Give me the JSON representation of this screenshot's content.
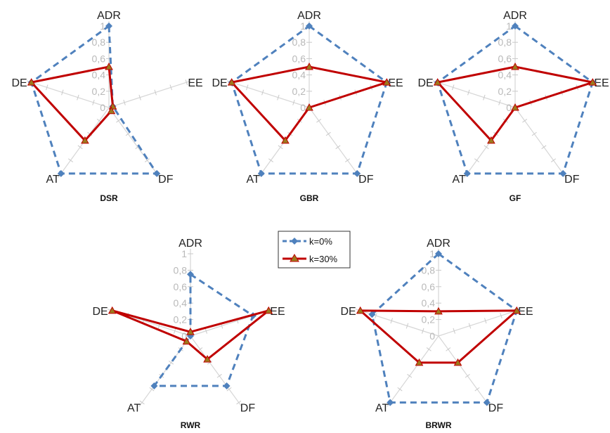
{
  "chart_data": [
    {
      "type": "radar",
      "title": "DSR",
      "axes": [
        "ADR",
        "EE",
        "DF",
        "AT",
        "DE"
      ],
      "tick_labels": [
        "0",
        "0,2",
        "0,4",
        "0,6",
        "0,8",
        "1"
      ],
      "range": [
        0,
        1
      ],
      "series": [
        {
          "name": "k=0%",
          "values": [
            1,
            0.05,
            1,
            1,
            1
          ]
        },
        {
          "name": "k=30%",
          "values": [
            0.5,
            0.05,
            0.05,
            0.5,
            1
          ]
        }
      ]
    },
    {
      "type": "radar",
      "title": "GBR",
      "axes": [
        "ADR",
        "EE",
        "DF",
        "AT",
        "DE"
      ],
      "tick_labels": [
        "0",
        "0,2",
        "0,4",
        "0,6",
        "0,8",
        "1"
      ],
      "range": [
        0,
        1
      ],
      "series": [
        {
          "name": "k=0%",
          "values": [
            1,
            1,
            1,
            1,
            1
          ]
        },
        {
          "name": "k=30%",
          "values": [
            0.5,
            1,
            0,
            0.5,
            1
          ]
        }
      ]
    },
    {
      "type": "radar",
      "title": "GF",
      "axes": [
        "ADR",
        "EE",
        "DF",
        "AT",
        "DE"
      ],
      "tick_labels": [
        "0",
        "0,2",
        "0,4",
        "0,6",
        "0,8",
        "1"
      ],
      "range": [
        0,
        1
      ],
      "series": [
        {
          "name": "k=0%",
          "values": [
            1,
            1,
            1,
            1,
            1
          ]
        },
        {
          "name": "k=30%",
          "values": [
            0.5,
            1,
            0,
            0.5,
            1
          ]
        }
      ]
    },
    {
      "type": "radar",
      "title": "RWR",
      "axes": [
        "ADR",
        "EE",
        "DF",
        "AT",
        "DE"
      ],
      "tick_labels": [
        "0",
        "0,2",
        "0,4",
        "0,6",
        "0,8",
        "1"
      ],
      "range": [
        0,
        1
      ],
      "series": [
        {
          "name": "k=0%",
          "values": [
            0.75,
            0.8,
            0.75,
            0.75,
            0
          ]
        },
        {
          "name": "k=30%",
          "values": [
            0.05,
            1,
            0.35,
            0.08,
            1
          ]
        }
      ]
    },
    {
      "type": "radar",
      "title": "BRWR",
      "axes": [
        "ADR",
        "EE",
        "DF",
        "AT",
        "DE"
      ],
      "tick_labels": [
        "0",
        "0,2",
        "0,4",
        "0,6",
        "0,8",
        "1"
      ],
      "range": [
        0,
        1
      ],
      "series": [
        {
          "name": "k=0%",
          "values": [
            1,
            1,
            1,
            1,
            0.85
          ]
        },
        {
          "name": "k=30%",
          "values": [
            0.3,
            1,
            0.4,
            0.4,
            1
          ]
        }
      ]
    }
  ],
  "legend": {
    "items": [
      {
        "label": "k=0%",
        "color": "#4f81bd",
        "dash": true,
        "marker": "diamond"
      },
      {
        "label": "k=30%",
        "color": "#c00000",
        "dash": false,
        "marker": "triangle"
      }
    ]
  },
  "colors": {
    "k0": "#4f81bd",
    "k30": "#c00000",
    "triangle_fill": "#9c7a1d"
  }
}
